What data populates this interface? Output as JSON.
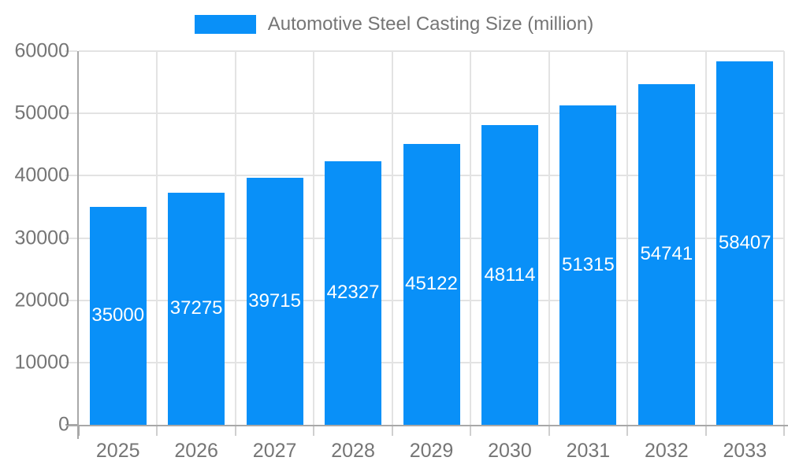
{
  "legend": {
    "label": "Automotive Steel Casting Size (million)"
  },
  "colors": {
    "bar": "#0990f8",
    "grid": "#e3e3e3",
    "axis": "#a8a8a8",
    "tick": "#cfcfcf",
    "text": "#757575",
    "value_label": "#ffffff",
    "background": "#ffffff"
  },
  "chart_data": {
    "type": "bar",
    "title": "Automotive Steel Casting Size (million)",
    "categories": [
      "2025",
      "2026",
      "2027",
      "2028",
      "2029",
      "2030",
      "2031",
      "2032",
      "2033"
    ],
    "series": [
      {
        "name": "Automotive Steel Casting Size (million)",
        "values": [
          35000,
          37275,
          39715,
          42327,
          45122,
          48114,
          51315,
          54741,
          58407
        ]
      }
    ],
    "xlabel": "",
    "ylabel": "",
    "ylim": [
      0,
      60000
    ],
    "yticks": [
      0,
      10000,
      20000,
      30000,
      40000,
      50000,
      60000
    ],
    "grid": true,
    "legend_position": "top-center",
    "value_label_position": "inside-center"
  }
}
